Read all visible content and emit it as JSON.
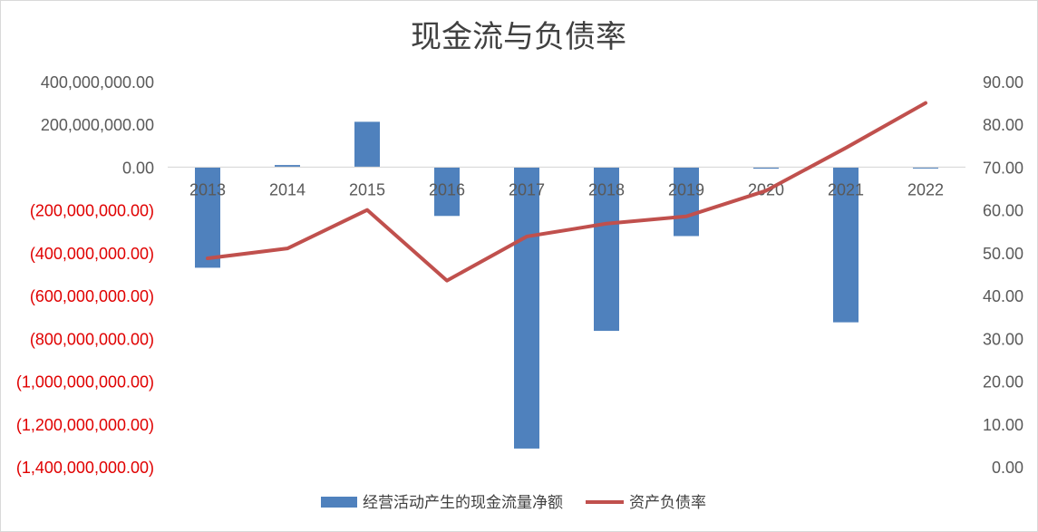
{
  "chart_data": {
    "type": "bar",
    "title": "现金流与负债率",
    "categories": [
      "2013",
      "2014",
      "2015",
      "2016",
      "2017",
      "2018",
      "2019",
      "2020",
      "2021",
      "2022"
    ],
    "series": [
      {
        "name": "经营活动产生的现金流量净额",
        "type": "bar",
        "axis": "left",
        "color": "#4f81bd",
        "values": [
          -470000000,
          10000000,
          212000000,
          -228000000,
          -1315000000,
          -765000000,
          -322000000,
          -7000000,
          -725000000,
          -5000000
        ]
      },
      {
        "name": "资产负债率",
        "type": "line",
        "axis": "right",
        "color": "#c0504d",
        "values": [
          48.7,
          51.0,
          60.0,
          43.5,
          53.8,
          56.8,
          58.5,
          64.5,
          74.5,
          85.0
        ]
      }
    ],
    "y_left": {
      "range": [
        -1400000000,
        400000000
      ],
      "ticks": [
        400000000,
        200000000,
        0,
        -200000000,
        -400000000,
        -600000000,
        -800000000,
        -1000000000,
        -1200000000,
        -1400000000
      ],
      "tick_labels": [
        "400,000,000.00",
        "200,000,000.00",
        "0.00",
        "(200,000,000.00)",
        "(400,000,000.00)",
        "(600,000,000.00)",
        "(800,000,000.00)",
        "(1,000,000,000.00)",
        "(1,200,000,000.00)",
        "(1,400,000,000.00)"
      ],
      "negative_label_color": "#e00000"
    },
    "y_right": {
      "range": [
        0,
        90
      ],
      "ticks": [
        90,
        80,
        70,
        60,
        50,
        40,
        30,
        20,
        10,
        0
      ],
      "tick_labels": [
        "90.00",
        "80.00",
        "70.00",
        "60.00",
        "50.00",
        "40.00",
        "30.00",
        "20.00",
        "10.00",
        "0.00"
      ]
    },
    "grid": false,
    "legend_position": "bottom"
  }
}
